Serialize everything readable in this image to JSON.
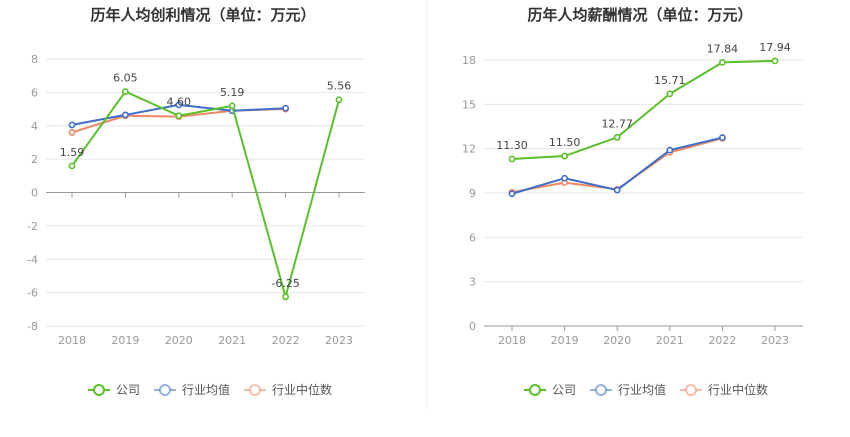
{
  "chart_data": [
    {
      "type": "line",
      "title": "历年人均创利情况（单位：万元）",
      "categories": [
        "2018",
        "2019",
        "2020",
        "2021",
        "2022",
        "2023"
      ],
      "y_ticks": [
        "8",
        "6",
        "4",
        "2",
        "0",
        "-2",
        "-4",
        "-6",
        "-8"
      ],
      "ylim": [
        -8,
        8
      ],
      "grid": true,
      "legend_position": "bottom",
      "series": [
        {
          "name": "公司",
          "color": "#5ac02a",
          "values": [
            1.59,
            6.05,
            4.6,
            5.19,
            -6.25,
            5.56
          ],
          "labels": [
            "1.59",
            "6.05",
            "4.60",
            "5.19",
            "-6.25",
            "5.56"
          ]
        },
        {
          "name": "行业均值",
          "color": "#3f6fca",
          "values": [
            4.05,
            4.65,
            5.25,
            4.9,
            5.05,
            null
          ]
        },
        {
          "name": "行业中位数",
          "color": "#ee8764",
          "values": [
            3.6,
            4.6,
            4.55,
            4.9,
            5.0,
            null
          ]
        }
      ]
    },
    {
      "type": "line",
      "title": "历年人均薪酬情况（单位：万元）",
      "categories": [
        "2018",
        "2019",
        "2020",
        "2021",
        "2022",
        "2023"
      ],
      "y_ticks": [
        "18",
        "15",
        "12",
        "9",
        "6",
        "3",
        "0"
      ],
      "ylim": [
        0,
        18
      ],
      "grid": true,
      "legend_position": "bottom",
      "series": [
        {
          "name": "公司",
          "color": "#5ac02a",
          "values": [
            11.3,
            11.5,
            12.77,
            15.71,
            17.84,
            17.94
          ],
          "labels": [
            "11.30",
            "11.50",
            "12.77",
            "15.71",
            "17.84",
            "17.94"
          ]
        },
        {
          "name": "行业均值",
          "color": "#3f6fca",
          "values": [
            8.95,
            10.0,
            9.2,
            11.9,
            12.75,
            null
          ]
        },
        {
          "name": "行业中位数",
          "color": "#ee8764",
          "values": [
            9.05,
            9.7,
            9.25,
            11.75,
            12.7,
            null
          ]
        }
      ]
    }
  ]
}
